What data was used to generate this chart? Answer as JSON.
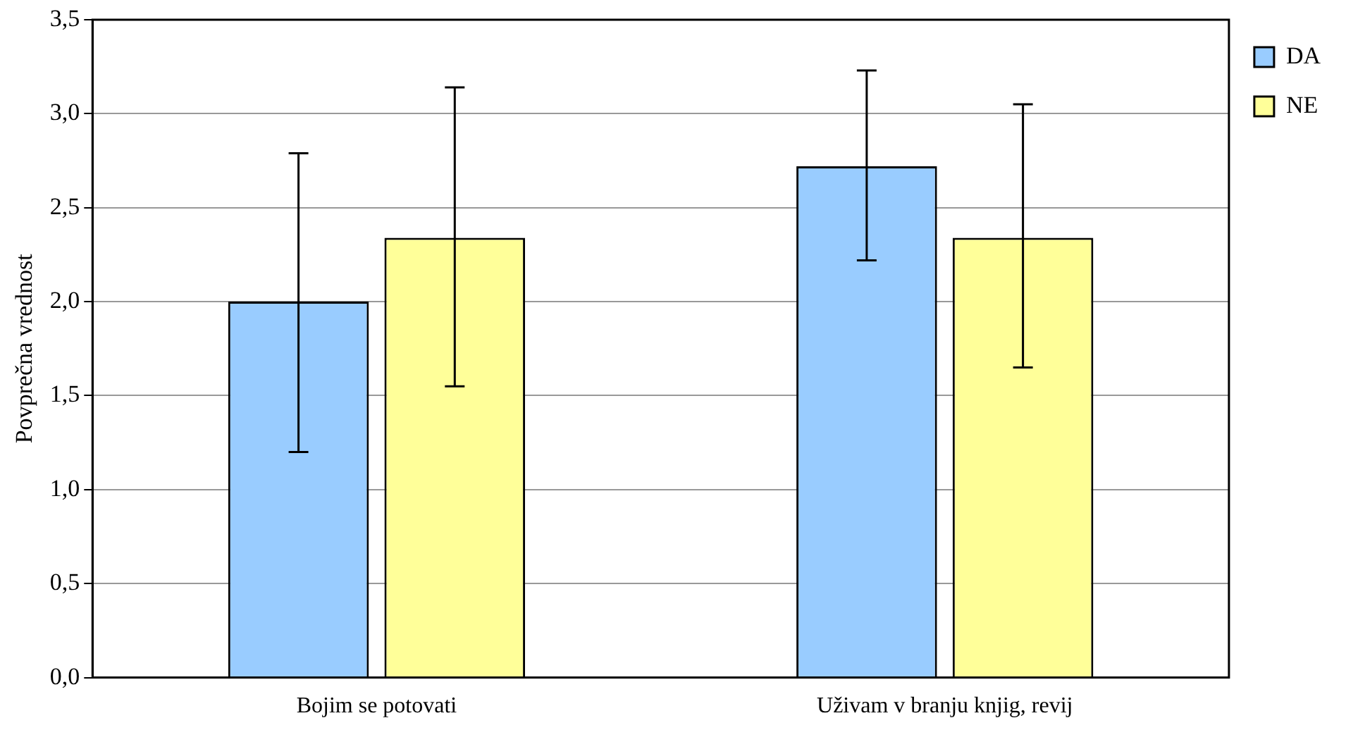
{
  "chart_data": {
    "type": "bar",
    "ylabel": "Povprečna vrednost",
    "categories": [
      "Bojim se potovati",
      "Uživam v branju knjig, revij"
    ],
    "series": [
      {
        "name": "DA",
        "color": "#99ccff",
        "values": [
          2.0,
          2.72
        ],
        "errors": [
          [
            1.2,
            2.79
          ],
          [
            2.22,
            3.23
          ]
        ]
      },
      {
        "name": "NE",
        "color": "#ffff99",
        "values": [
          2.34,
          2.34
        ],
        "errors": [
          [
            1.55,
            3.14
          ],
          [
            1.65,
            3.05
          ]
        ]
      }
    ],
    "ylim": [
      0,
      3.5
    ],
    "yticks": [
      {
        "value": 0,
        "label": "0,0"
      },
      {
        "value": 0.5,
        "label": "0,5"
      },
      {
        "value": 1,
        "label": "1,0"
      },
      {
        "value": 1.5,
        "label": "1,5"
      },
      {
        "value": 2,
        "label": "2,0"
      },
      {
        "value": 2.5,
        "label": "2,5"
      },
      {
        "value": 3,
        "label": "3,0"
      },
      {
        "value": 3.5,
        "label": "3,5"
      }
    ],
    "grid": "y",
    "legend": "top right"
  }
}
